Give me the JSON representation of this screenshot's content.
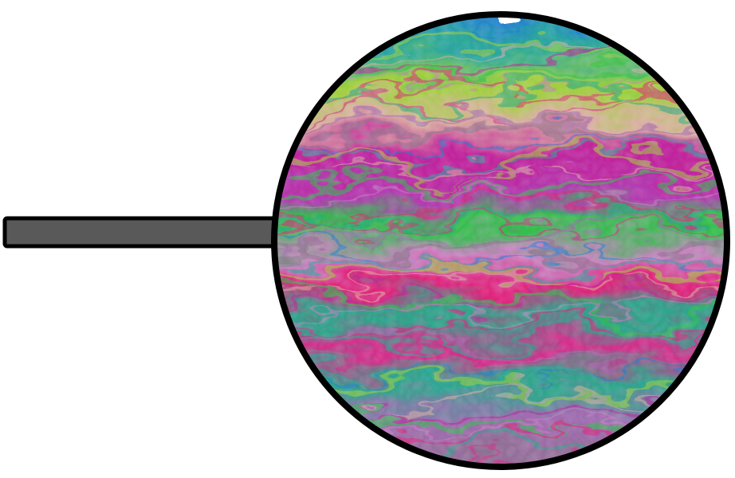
{
  "diagram": {
    "subject": "soap-bubble-film-on-wand",
    "colors": {
      "background": "#ffffff",
      "outline": "#000000",
      "handle_fill": "#595959",
      "film_bands": [
        "#1f7fd0",
        "#2aa79a",
        "#9ecf3a",
        "#d8b0a0",
        "#c0209a",
        "#2dbf48",
        "#c77fbf",
        "#e0207a",
        "#2aa58a",
        "#d62a8a",
        "#a06ab0",
        "#8a6f8a"
      ]
    },
    "icons": {
      "handle": "wand-handle-icon",
      "lens": "bubble-film-icon"
    }
  }
}
